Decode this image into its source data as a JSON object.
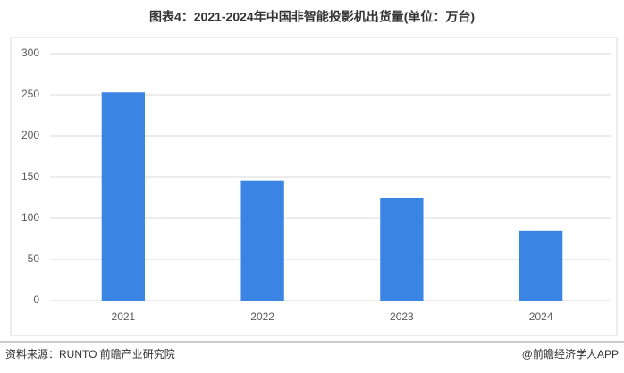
{
  "chart_data": {
    "type": "bar",
    "title": "图表4：2021-2024年中国非智能投影机出货量(单位：万台)",
    "categories": [
      "2021",
      "2022",
      "2023",
      "2024"
    ],
    "values": [
      253,
      146,
      125,
      85
    ],
    "color": "#3a84e4",
    "ylim": [
      0,
      300
    ],
    "yticks": [
      0,
      50,
      100,
      150,
      200,
      250,
      300
    ],
    "grid": true,
    "source": "资料来源：RUNTO 前瞻产业研究院",
    "credit": "@前瞻经济学人APP"
  }
}
